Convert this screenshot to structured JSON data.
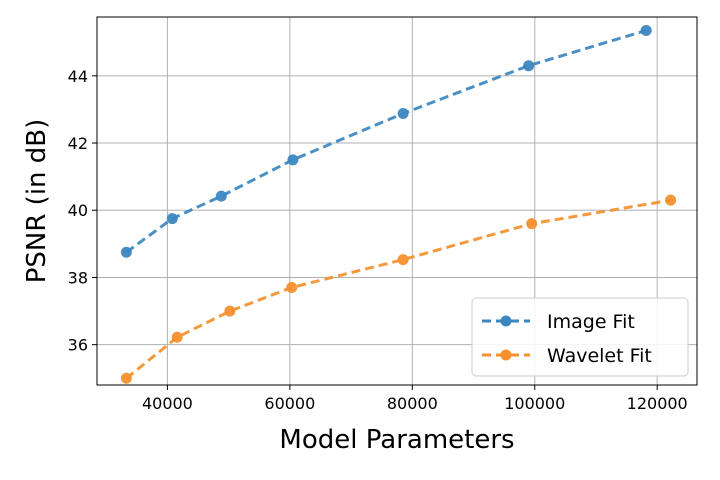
{
  "chart_data": {
    "type": "line",
    "title": "",
    "xlabel": "Model Parameters",
    "ylabel": "PSNR (in dB)",
    "xlim": [
      28500,
      126500
    ],
    "ylim": [
      34.8,
      45.75
    ],
    "xticks": [
      40000,
      60000,
      80000,
      100000,
      120000
    ],
    "xtick_labels": [
      "40000",
      "60000",
      "80000",
      "100000",
      "120000"
    ],
    "yticks": [
      36,
      38,
      40,
      42,
      44
    ],
    "ytick_labels": [
      "36",
      "38",
      "40",
      "42",
      "44"
    ],
    "grid": true,
    "legend_position": "lower-right",
    "series": [
      {
        "name": "Image Fit",
        "color": "#3b87c0",
        "marker": "circle",
        "line_style": "dashed",
        "x": [
          33300,
          40800,
          48800,
          60500,
          78500,
          99000,
          118200
        ],
        "y": [
          38.75,
          39.75,
          40.42,
          41.5,
          42.88,
          44.3,
          45.35
        ]
      },
      {
        "name": "Wavelet Fit",
        "color": "#f5902d",
        "marker": "circle",
        "line_style": "dashed",
        "x": [
          33300,
          41600,
          50200,
          60300,
          78500,
          99500,
          122200
        ],
        "y": [
          35.0,
          36.22,
          37.0,
          37.7,
          38.53,
          39.6,
          40.3
        ]
      }
    ]
  }
}
